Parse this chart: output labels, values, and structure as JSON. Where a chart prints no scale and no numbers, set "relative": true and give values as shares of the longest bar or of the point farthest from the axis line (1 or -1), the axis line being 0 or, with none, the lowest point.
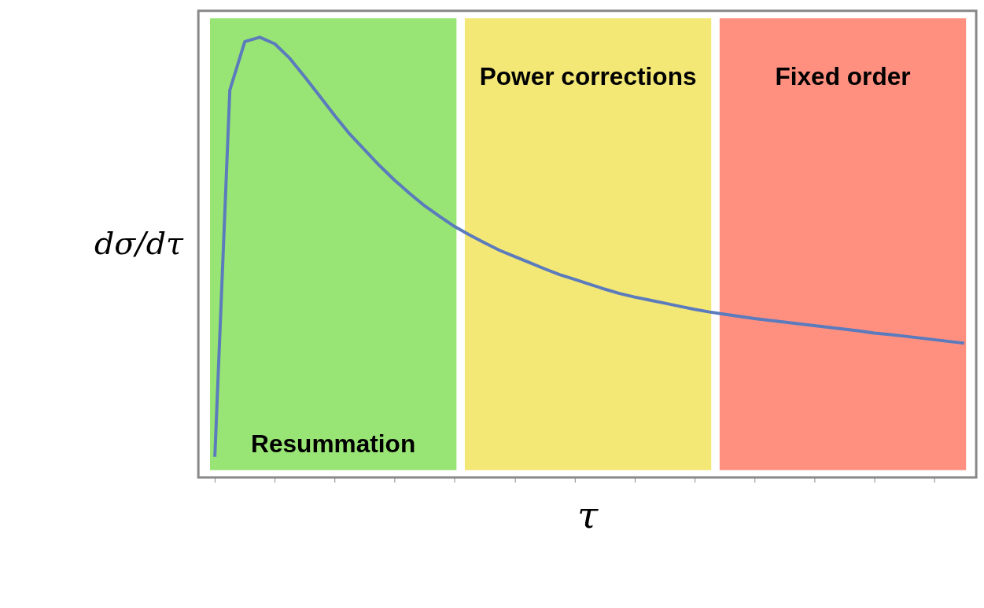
{
  "chart_data": {
    "type": "line",
    "xlabel": "τ",
    "ylabel": "dσ/dτ",
    "relative": true,
    "tick_labels": false,
    "grid": false,
    "marker": "none",
    "line_style": "solid",
    "categories": [
      null,
      null,
      null,
      null,
      null,
      null,
      null,
      null,
      null,
      null,
      null,
      null,
      null,
      null,
      null,
      null,
      null,
      null,
      null,
      null,
      null,
      null,
      null,
      null,
      null,
      null,
      null,
      null,
      null,
      null,
      null,
      null,
      null,
      null,
      null,
      null,
      null,
      null,
      null,
      null,
      null,
      null,
      null,
      null,
      null,
      null,
      null,
      null,
      null,
      null,
      null
    ],
    "series": [
      {
        "color": "#5b7bbd",
        "values": [
          0.047,
          0.88,
          0.99,
          1.0,
          0.985,
          0.952,
          0.91,
          0.866,
          0.822,
          0.78,
          0.744,
          0.708,
          0.675,
          0.645,
          0.617,
          0.593,
          0.57,
          0.551,
          0.533,
          0.516,
          0.502,
          0.488,
          0.474,
          0.461,
          0.45,
          0.439,
          0.428,
          0.418,
          0.41,
          0.403,
          0.396,
          0.389,
          0.382,
          0.376,
          0.371,
          0.366,
          0.361,
          0.357,
          0.353,
          0.349,
          0.345,
          0.341,
          0.337,
          0.333,
          0.328,
          0.325,
          0.321,
          0.317,
          0.313,
          0.309,
          0.305
        ]
      }
    ],
    "annotations": [
      "Resummation",
      "Power corrections",
      "Fixed order"
    ]
  }
}
